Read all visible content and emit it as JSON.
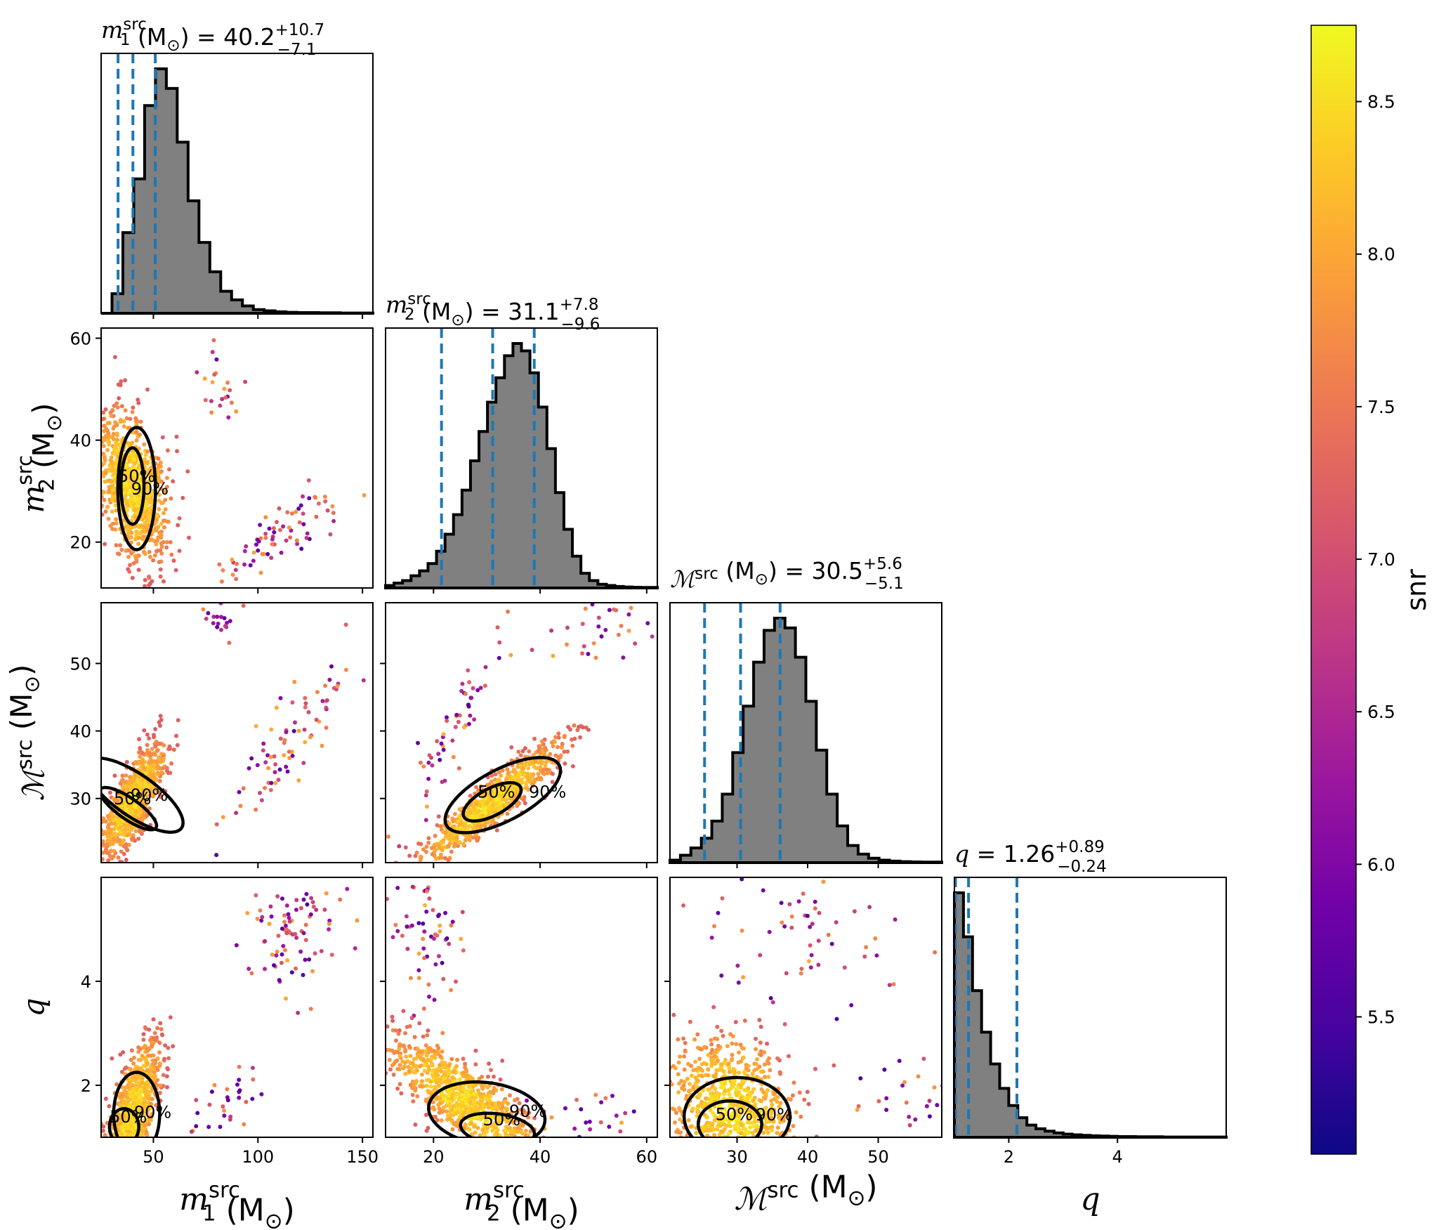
{
  "figure": {
    "type": "corner-plot",
    "colorbar": {
      "label": "snr",
      "min": 5.05,
      "max": 8.75,
      "ticks": [
        "5.5",
        "6.0",
        "6.5",
        "7.0",
        "7.5",
        "8.0",
        "8.5"
      ],
      "colormap": "plasma"
    },
    "colors": {
      "hist_fill": "#808080",
      "hist_edge": "#000000",
      "quantile_line": "#1f77b4",
      "contour": "#000000"
    }
  },
  "chart_data": {
    "type": "scatter",
    "parameters": [
      {
        "key": "m1",
        "symbol": "m",
        "sub": "1",
        "sup": "src",
        "unit": "(M",
        "unit_sub": "⊙",
        "unit_close": ")",
        "title_eq": " = 40.2",
        "err_plus": "+10.7",
        "err_minus": "−7.1",
        "range": [
          25,
          155
        ],
        "ticks": [
          "50",
          "100",
          "150"
        ],
        "tick_values": [
          50,
          100,
          150
        ],
        "median": 40.2,
        "q_low": 33.1,
        "q_high": 50.9,
        "hist": [
          0,
          0.08,
          0.33,
          0.55,
          0.85,
          1.0,
          0.92,
          0.7,
          0.46,
          0.29,
          0.17,
          0.09,
          0.055,
          0.03,
          0.015,
          0.01,
          0.006,
          0.004,
          0.003,
          0.003,
          0.002,
          0.002,
          0.001,
          0.001,
          0.001
        ]
      },
      {
        "key": "m2",
        "symbol": "m",
        "sub": "2",
        "sup": "src",
        "unit": "(M",
        "unit_sub": "⊙",
        "unit_close": ")",
        "title_eq": " = 31.1",
        "err_plus": "+7.8",
        "err_minus": "−9.6",
        "range": [
          11,
          62
        ],
        "ticks": [
          "20",
          "40",
          "60"
        ],
        "tick_values": [
          20,
          40,
          60
        ],
        "median": 31.1,
        "q_low": 21.5,
        "q_high": 38.9,
        "hist": [
          0.01,
          0.02,
          0.03,
          0.05,
          0.07,
          0.1,
          0.15,
          0.22,
          0.3,
          0.4,
          0.52,
          0.64,
          0.76,
          0.86,
          0.95,
          1.0,
          0.97,
          0.88,
          0.74,
          0.57,
          0.39,
          0.24,
          0.13,
          0.06,
          0.03,
          0.015,
          0.01,
          0.006,
          0.004,
          0.003,
          0.002,
          0.002
        ]
      },
      {
        "key": "mc",
        "symbol": "ℳ",
        "sub": "",
        "sup": "src",
        "unit": "(M",
        "unit_sub": "⊙",
        "unit_close": ")",
        "title_eq": " = 30.5",
        "err_plus": "+5.6",
        "err_minus": "−5.1",
        "range": [
          20.5,
          59
        ],
        "ticks": [
          "30",
          "40",
          "50"
        ],
        "tick_values": [
          30,
          40,
          50
        ],
        "median": 30.5,
        "q_low": 25.4,
        "q_high": 36.1,
        "hist": [
          0.01,
          0.03,
          0.06,
          0.1,
          0.17,
          0.28,
          0.45,
          0.64,
          0.82,
          0.95,
          1.0,
          0.96,
          0.84,
          0.66,
          0.46,
          0.28,
          0.15,
          0.07,
          0.035,
          0.018,
          0.01,
          0.006,
          0.004,
          0.003,
          0.002,
          0.002
        ]
      },
      {
        "key": "q",
        "symbol": "q",
        "sub": "",
        "sup": "",
        "unit": "",
        "unit_sub": "",
        "unit_close": "",
        "title_eq": " = 1.26",
        "err_plus": "+0.89",
        "err_minus": "−0.24",
        "range": [
          1.0,
          6.0
        ],
        "ticks": [
          "2",
          "4"
        ],
        "tick_values": [
          2,
          4
        ],
        "median": 1.26,
        "q_low": 1.02,
        "q_high": 2.15,
        "hist": [
          1.0,
          0.82,
          0.6,
          0.43,
          0.3,
          0.2,
          0.13,
          0.08,
          0.05,
          0.035,
          0.025,
          0.018,
          0.013,
          0.01,
          0.008,
          0.006,
          0.005,
          0.004,
          0.003,
          0.003,
          0.002,
          0.002,
          0.002,
          0.001,
          0.001,
          0.001,
          0.001,
          0.001,
          0.001,
          0.001
        ]
      }
    ],
    "y_ticks_left": {
      "m2": [
        "20",
        "40",
        "60"
      ],
      "mc": [
        "30",
        "40",
        "50"
      ],
      "q": [
        "2",
        "4"
      ]
    },
    "contour_labels": [
      "50%",
      "90%"
    ],
    "pairs": [
      {
        "x": "m1",
        "y": "m2",
        "main": {
          "cx": 40,
          "cy": 31,
          "sx": 8.5,
          "sy": 7,
          "rho": -0.35,
          "n": 900
        },
        "tail": [
          {
            "cx": 112,
            "cy": 22,
            "sx": 14,
            "sy": 4.5,
            "rho": 0.75,
            "n": 75
          },
          {
            "cx": 80,
            "cy": 53,
            "sx": 6,
            "sy": 5,
            "rho": -0.2,
            "n": 24
          }
        ],
        "c50": {
          "cx": 40,
          "cy": 31,
          "rx": 5.5,
          "ry": 7.5,
          "angle": 0
        },
        "c90": {
          "cx": 42,
          "cy": 30.5,
          "rx": 9,
          "ry": 12,
          "angle": 0
        }
      },
      {
        "x": "m1",
        "y": "mc",
        "main": {
          "cx": 40,
          "cy": 29.5,
          "sx": 7.5,
          "sy": 4,
          "rho": 0.75,
          "n": 900
        },
        "tail": [
          {
            "cx": 115,
            "cy": 39,
            "sx": 15,
            "sy": 6,
            "rho": 0.85,
            "n": 80
          },
          {
            "cx": 80,
            "cy": 57,
            "sx": 8,
            "sy": 2,
            "rho": 0,
            "n": 22
          }
        ],
        "c50": {
          "cx": 38,
          "cy": 28.5,
          "rx": 5,
          "ry": 5,
          "angle": 55
        },
        "c90": {
          "cx": 41,
          "cy": 30.5,
          "rx": 10,
          "ry": 8.5,
          "angle": 55
        }
      },
      {
        "x": "m1",
        "y": "q",
        "main": {
          "cx": 40,
          "cy": 1.4,
          "sx": 6.5,
          "sy": 0.7,
          "rho": 0.65,
          "n": 900
        },
        "tail": [
          {
            "cx": 118,
            "cy": 5.0,
            "sx": 14,
            "sy": 0.7,
            "rho": 0.3,
            "n": 90
          },
          {
            "cx": 85,
            "cy": 1.6,
            "sx": 8,
            "sy": 0.4,
            "rho": 0.5,
            "n": 30
          }
        ],
        "c50": {
          "cx": 36,
          "cy": 1.2,
          "rx": 7,
          "ry": 0.35,
          "angle": 0
        },
        "c90": {
          "cx": 42,
          "cy": 1.45,
          "rx": 11,
          "ry": 0.8,
          "angle": 0
        }
      },
      {
        "x": "m2",
        "y": "mc",
        "main": {
          "cx": 31,
          "cy": 29.5,
          "sx": 6.5,
          "sy": 4.5,
          "rho": 0.92,
          "n": 900
        },
        "tail": [
          {
            "cx": 24,
            "cy": 41,
            "sx": 4,
            "sy": 6,
            "rho": 0.9,
            "n": 60
          },
          {
            "cx": 52,
            "cy": 55,
            "sx": 6,
            "sy": 2.5,
            "rho": 0.5,
            "n": 35
          }
        ],
        "c50": {
          "cx": 31,
          "cy": 29.5,
          "rx": 6,
          "ry": 2,
          "angle": 28
        },
        "c90": {
          "cx": 33,
          "cy": 30.5,
          "rx": 12,
          "ry": 3.8,
          "angle": 28
        }
      },
      {
        "x": "m2",
        "y": "q",
        "main": {
          "cx": 26,
          "cy": 1.7,
          "sx": 7,
          "sy": 0.6,
          "rho": -0.8,
          "n": 900
        },
        "tail": [
          {
            "cx": 20,
            "cy": 5.0,
            "sx": 4,
            "sy": 0.8,
            "rho": -0.3,
            "n": 70
          },
          {
            "cx": 52,
            "cy": 1.4,
            "sx": 6,
            "sy": 0.25,
            "rho": -0.3,
            "n": 30
          }
        ],
        "c50": {
          "cx": 32,
          "cy": 1.15,
          "rx": 7,
          "ry": 0.3,
          "angle": -8
        },
        "c90": {
          "cx": 30,
          "cy": 1.45,
          "rx": 11,
          "ry": 0.6,
          "angle": -8
        }
      },
      {
        "x": "mc",
        "y": "q",
        "main": {
          "cx": 29.5,
          "cy": 1.5,
          "sx": 4.5,
          "sy": 0.7,
          "rho": -0.2,
          "n": 900
        },
        "tail": [
          {
            "cx": 40,
            "cy": 5.1,
            "sx": 8,
            "sy": 0.9,
            "rho": 0.1,
            "n": 70
          },
          {
            "cx": 54,
            "cy": 1.7,
            "sx": 3,
            "sy": 0.4,
            "rho": 0,
            "n": 25
          }
        ],
        "c50": {
          "cx": 29,
          "cy": 1.25,
          "rx": 4.5,
          "ry": 0.45,
          "angle": 0
        },
        "c90": {
          "cx": 30,
          "cy": 1.4,
          "rx": 7.5,
          "ry": 0.75,
          "angle": 0
        }
      }
    ]
  }
}
